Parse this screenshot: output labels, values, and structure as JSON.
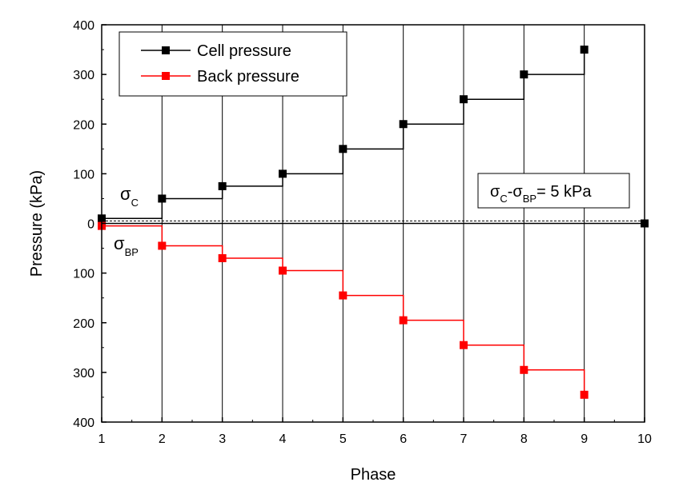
{
  "chart_data": {
    "type": "line",
    "step": true,
    "xlabel": "Phase",
    "ylabel": "Pressure (kPa)",
    "xlim": [
      1,
      10
    ],
    "ylim": [
      -400,
      400
    ],
    "x_ticks": [
      1,
      2,
      3,
      4,
      5,
      6,
      7,
      8,
      9,
      10
    ],
    "y_ticks": [
      400,
      300,
      200,
      100,
      0,
      -100,
      -200,
      -300,
      -400
    ],
    "y_tick_labels": [
      "400",
      "300",
      "200",
      "100",
      "0",
      "100",
      "200",
      "300",
      "400"
    ],
    "vertical_grid": true,
    "zero_line_dashed_offset": 5,
    "legend_position": "top-left",
    "series": [
      {
        "name": "Cell pressure",
        "color": "#000000",
        "x": [
          1,
          2,
          3,
          4,
          5,
          6,
          7,
          8,
          9
        ],
        "values": [
          10,
          50,
          75,
          100,
          150,
          200,
          250,
          300,
          350
        ]
      },
      {
        "name": "Back pressure",
        "color": "#ff0000",
        "x": [
          1,
          2,
          3,
          4,
          5,
          6,
          7,
          8,
          9
        ],
        "values": [
          -5,
          -45,
          -70,
          -95,
          -145,
          -195,
          -245,
          -295,
          -345
        ]
      }
    ],
    "extra_point": {
      "x": 10,
      "y": 0,
      "color": "#000000"
    },
    "annotations": {
      "sigma_c": {
        "symbol": "σ",
        "sub": "C"
      },
      "sigma_bp": {
        "symbol": "σ",
        "sub": "BP"
      },
      "box": {
        "sigma": "σ",
        "sub1": "C",
        "dash": "-",
        "sub2": "BP",
        "rest": "= 5 kPa"
      }
    }
  }
}
